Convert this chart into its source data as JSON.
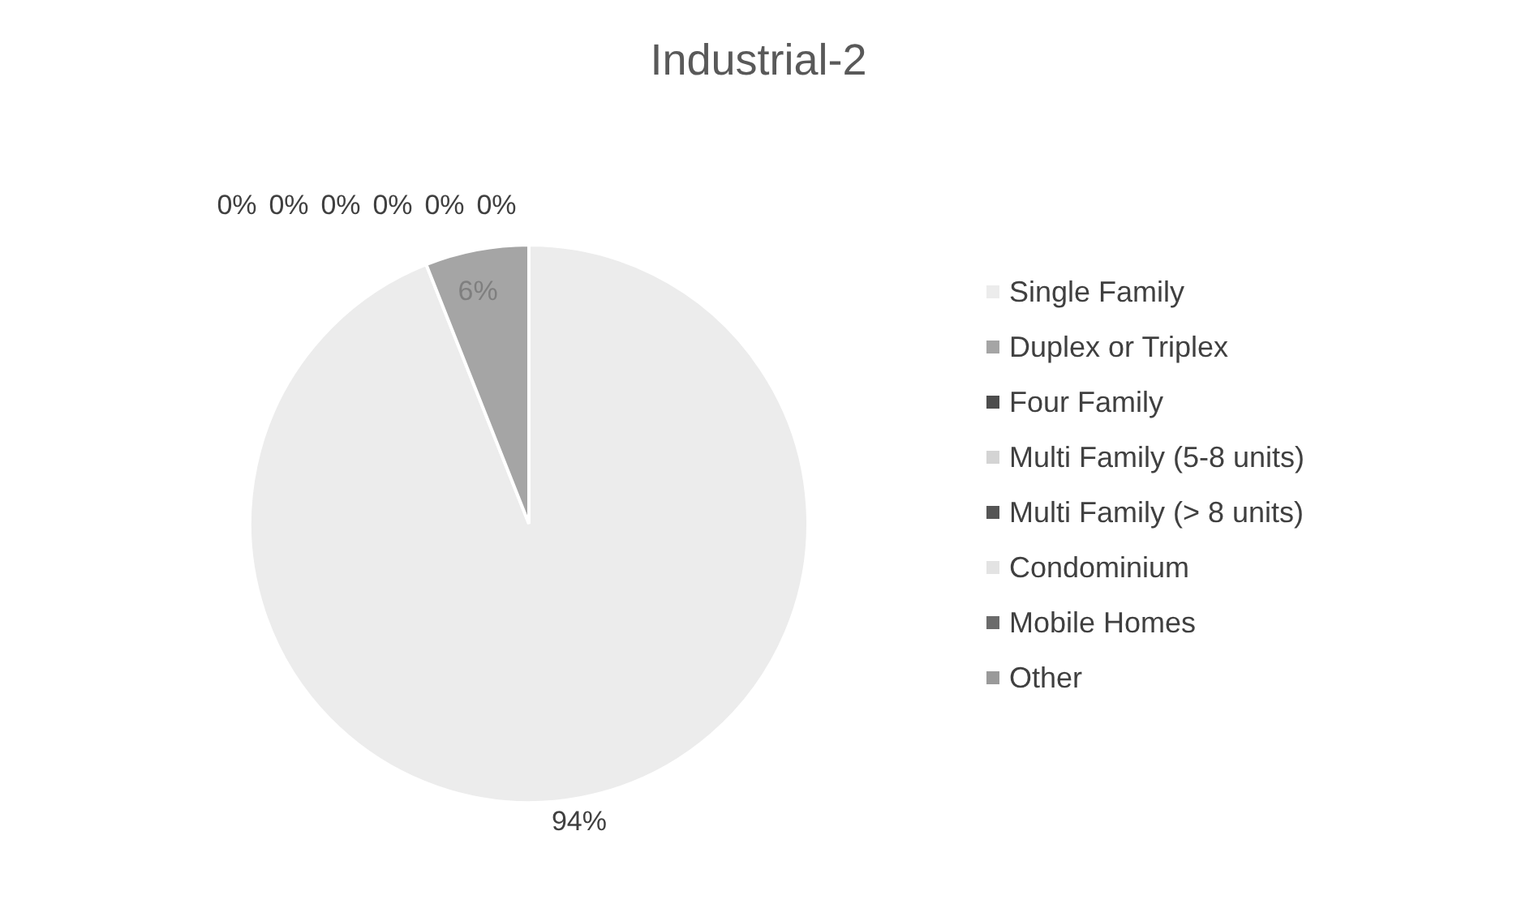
{
  "chart_data": {
    "type": "pie",
    "title": "Industrial-2",
    "categories": [
      "Single Family",
      "Duplex or Triplex",
      "Four Family",
      "Multi Family (5-8 units)",
      "Multi Family (> 8 units)",
      "Condominium",
      "Mobile Homes",
      "Other"
    ],
    "values": [
      94,
      6,
      0,
      0,
      0,
      0,
      0,
      0
    ],
    "colors": [
      "#ececec",
      "#a5a5a5",
      "#4d4d4d",
      "#d4d4d4",
      "#555555",
      "#e3e3e3",
      "#6b6b6b",
      "#9a9a9a"
    ],
    "value_labels": [
      "94%",
      "6%",
      "0%",
      "0%",
      "0%",
      "0%",
      "0%",
      "0%"
    ],
    "legend": "right"
  }
}
